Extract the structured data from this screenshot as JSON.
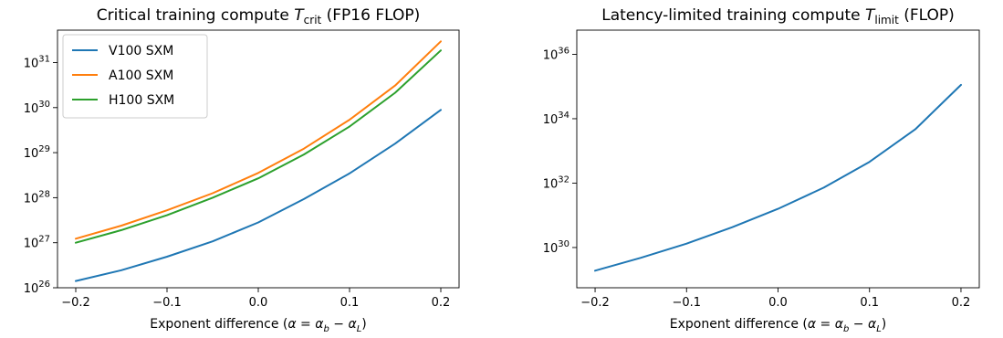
{
  "chart_data": [
    {
      "type": "line",
      "title": "Critical training compute T_crit (FP16 FLOP)",
      "title_parts": {
        "prefix": "Critical training compute ",
        "symbol": "T",
        "subscript": "crit",
        "suffix": " (FP16 FLOP)"
      },
      "xlabel": "Exponent difference (α = α_b − α_L)",
      "xlabel_parts": {
        "prefix": "Exponent difference (",
        "a": "α",
        "eq": " = ",
        "b": "α",
        "b_sub": "b",
        "minus": " − ",
        "c": "α",
        "c_sub": "L",
        "suffix": ")"
      },
      "ylabel": "",
      "x_scale": "linear",
      "y_scale": "log",
      "xlim": [
        -0.22,
        0.22
      ],
      "ylim": [
        26,
        31.72
      ],
      "x_ticks": [
        -0.2,
        -0.1,
        0.0,
        0.1,
        0.2
      ],
      "x_tick_labels": [
        "−0.2",
        "−0.1",
        "0.0",
        "0.1",
        "0.2"
      ],
      "y_ticks_exp": [
        26,
        27,
        28,
        29,
        30,
        31
      ],
      "y_tick_base": "10",
      "grid": false,
      "legend": "top-left",
      "x": [
        -0.2,
        -0.15,
        -0.1,
        -0.05,
        0.0,
        0.05,
        0.1,
        0.15,
        0.2
      ],
      "series": [
        {
          "name": "V100 SXM",
          "color": "#1f77b4",
          "log10_values": [
            26.15,
            26.39,
            26.69,
            27.03,
            27.45,
            27.97,
            28.54,
            29.2,
            29.95
          ]
        },
        {
          "name": "A100 SXM",
          "color": "#ff7f0e",
          "log10_values": [
            27.09,
            27.38,
            27.72,
            28.1,
            28.55,
            29.09,
            29.73,
            30.49,
            31.47
          ]
        },
        {
          "name": "H100 SXM",
          "color": "#2ca02c",
          "log10_values": [
            27.0,
            27.28,
            27.61,
            28.0,
            28.43,
            28.96,
            29.58,
            30.33,
            31.27
          ]
        }
      ]
    },
    {
      "type": "line",
      "title": "Latency-limited training compute T_limit (FLOP)",
      "title_parts": {
        "prefix": "Latency-limited training compute ",
        "symbol": "T",
        "subscript": "limit",
        "suffix": " (FLOP)"
      },
      "xlabel": "Exponent difference (α = α_b − α_L)",
      "xlabel_parts": {
        "prefix": "Exponent difference (",
        "a": "α",
        "eq": " = ",
        "b": "α",
        "b_sub": "b",
        "minus": " − ",
        "c": "α",
        "c_sub": "L",
        "suffix": ")"
      },
      "ylabel": "",
      "x_scale": "linear",
      "y_scale": "log",
      "xlim": [
        -0.22,
        0.22
      ],
      "ylim": [
        28.75,
        36.75
      ],
      "x_ticks": [
        -0.2,
        -0.1,
        0.0,
        0.1,
        0.2
      ],
      "x_tick_labels": [
        "−0.2",
        "−0.1",
        "0.0",
        "0.1",
        "0.2"
      ],
      "y_ticks_exp": [
        30,
        32,
        34,
        36
      ],
      "y_tick_base": "10",
      "grid": false,
      "legend": "none",
      "x": [
        -0.2,
        -0.15,
        -0.1,
        -0.05,
        0.0,
        0.05,
        0.1,
        0.15,
        0.2
      ],
      "series": [
        {
          "name": "",
          "color": "#1f77b4",
          "log10_values": [
            29.28,
            29.68,
            30.12,
            30.63,
            31.2,
            31.86,
            32.66,
            33.67,
            35.05
          ]
        }
      ]
    }
  ]
}
